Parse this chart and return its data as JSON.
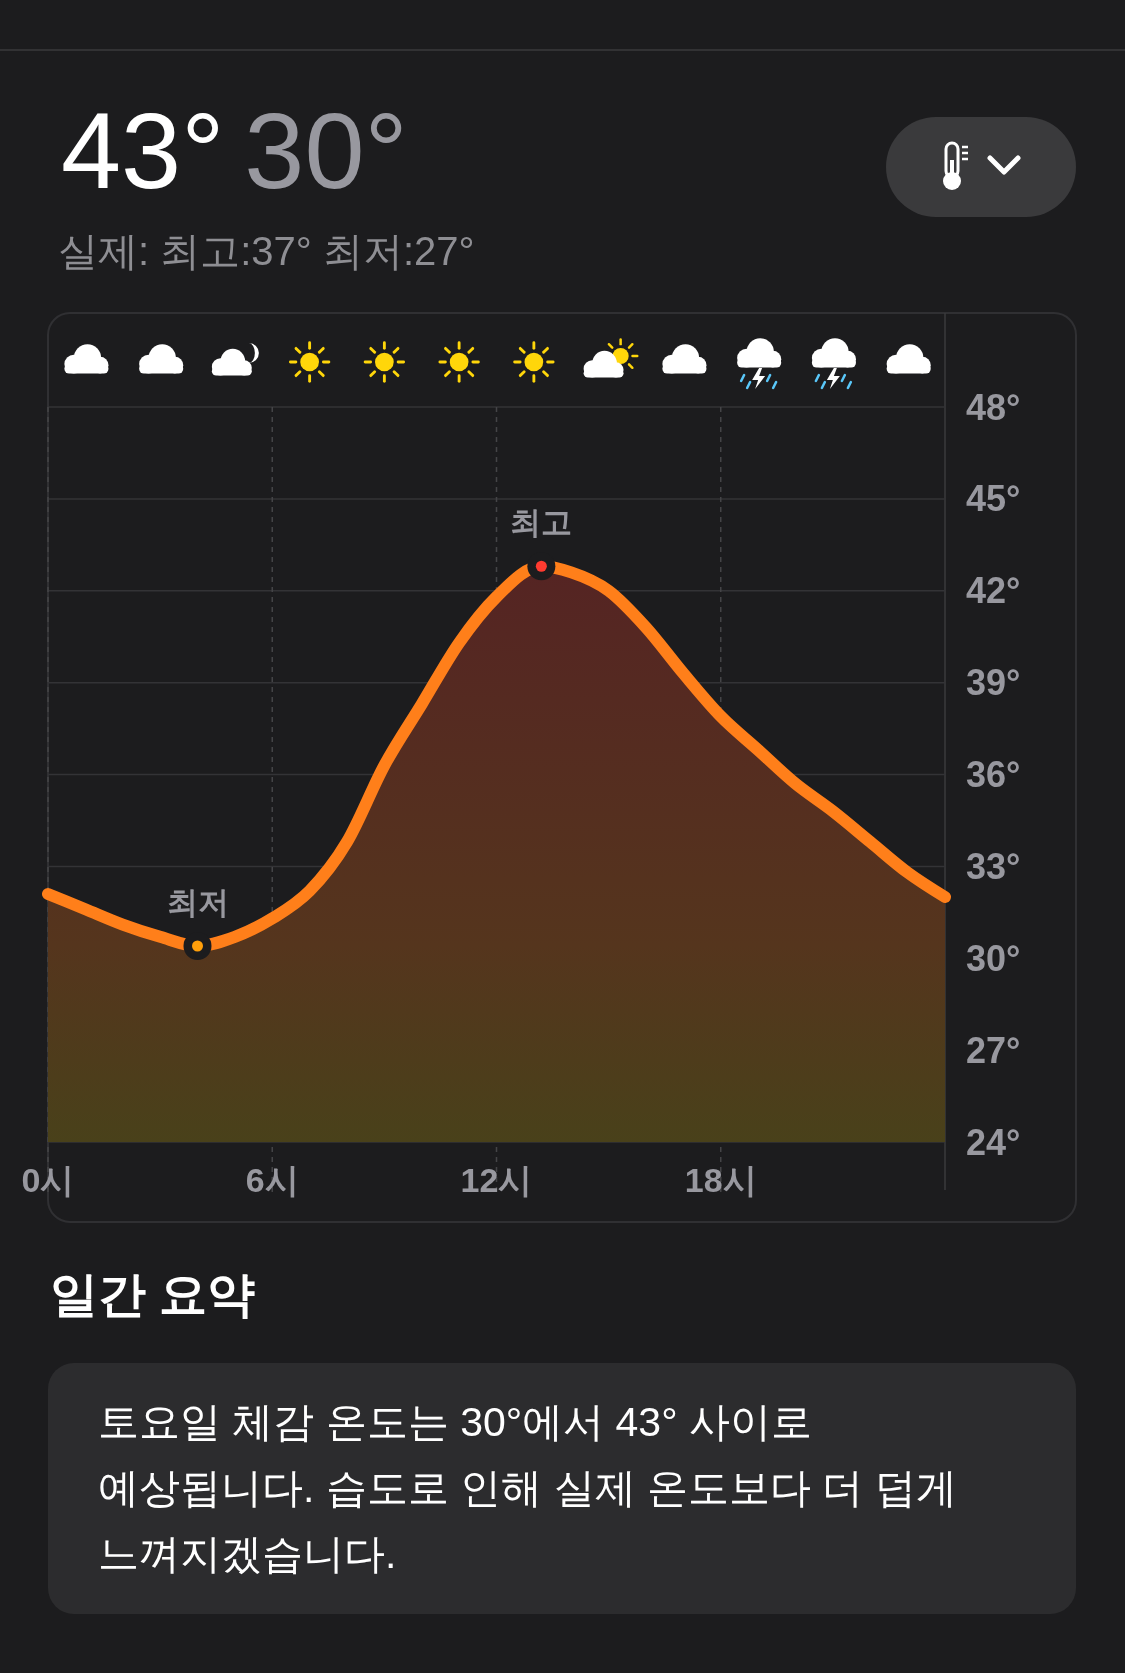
{
  "chart_data": {
    "type": "area",
    "title": "43°",
    "subtitle": "30°",
    "annotations": [
      "실제: 최고:37° 최저:27°",
      {
        "text": "최고",
        "x": 13.2,
        "y": 42.8
      },
      {
        "text": "최저",
        "x": 4,
        "y": 30.4
      },
      "일간 요약",
      "토요일 체감 온도는 30°에서 43° 사이로 예상됩니다. 습도로 인해 실제 온도보다 더 덥게 느껴지겠습니다."
    ],
    "x": [
      0,
      1,
      2,
      3,
      4,
      5,
      6,
      7,
      8,
      9,
      10,
      11,
      12,
      13.2,
      14,
      15,
      16,
      17,
      18,
      19,
      20,
      21,
      22,
      23,
      24
    ],
    "series": [
      {
        "color": "#ff7f1a",
        "values": [
          32.1,
          31.6,
          31.1,
          30.7,
          30.4,
          30.7,
          31.3,
          32.2,
          33.8,
          36.3,
          38.3,
          40.3,
          41.8,
          42.8,
          42.6,
          42.0,
          40.8,
          39.3,
          37.9,
          36.8,
          35.7,
          34.8,
          33.8,
          32.8,
          32.0
        ]
      }
    ],
    "xlim": [
      0,
      24
    ],
    "xticks": [
      {
        "value": 0,
        "label": "0시"
      },
      {
        "value": 6,
        "label": "6시"
      },
      {
        "value": 12,
        "label": "12시"
      },
      {
        "value": 18,
        "label": "18시"
      }
    ],
    "ylim": [
      24,
      48
    ],
    "yticks": [
      {
        "value": 24,
        "label": "24°"
      },
      {
        "value": 27,
        "label": "27°"
      },
      {
        "value": 30,
        "label": "30°"
      },
      {
        "value": 33,
        "label": "33°"
      },
      {
        "value": 36,
        "label": "36°"
      },
      {
        "value": 39,
        "label": "39°"
      },
      {
        "value": 42,
        "label": "42°"
      },
      {
        "value": 45,
        "label": "45°"
      },
      {
        "value": 48,
        "label": "48°"
      }
    ],
    "grid": true
  }
}
